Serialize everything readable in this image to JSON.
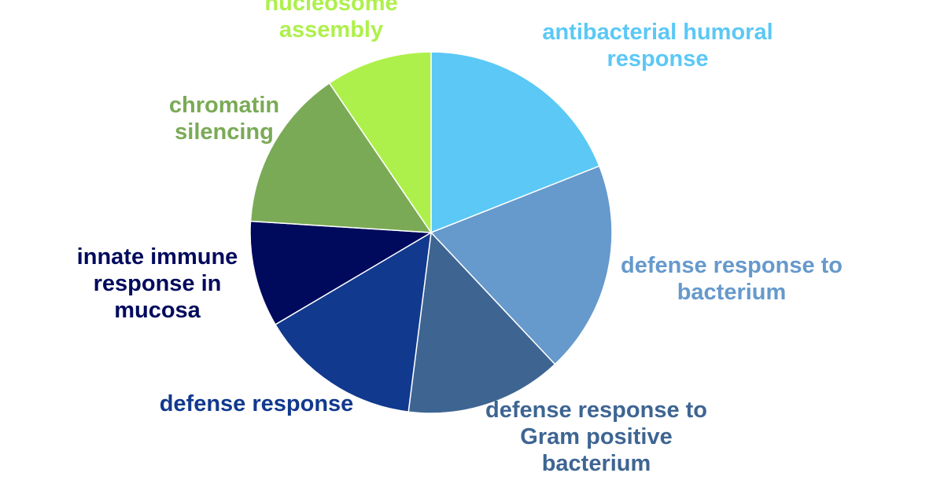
{
  "chart_data": {
    "type": "pie",
    "categories": [
      "antibacterial humoral response",
      "defense response to bacterium",
      "defense response to Gram positive bacterium",
      "defense response",
      "innate immune response in mucosa",
      "chromatin silencing",
      "nucleosome assembly"
    ],
    "values": [
      19,
      19,
      14,
      14.5,
      9.5,
      14.5,
      9.5
    ],
    "colors": [
      "#5bc8f6",
      "#6699cc",
      "#3e6592",
      "#11398e",
      "#000a5c",
      "#7aaa56",
      "#aef04b"
    ]
  }
}
